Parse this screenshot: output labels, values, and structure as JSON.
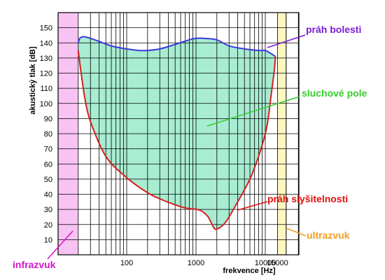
{
  "chart_data": {
    "type": "area",
    "xlabel": "frekvence [Hz]",
    "ylabel": "akustický tlak [dB]",
    "x_scale": "log",
    "xlim": [
      10,
      20000
    ],
    "ylim": [
      0,
      160
    ],
    "grid": true,
    "x_ticks": [
      {
        "value": 100,
        "label": "100"
      },
      {
        "value": 1000,
        "label": "1000"
      },
      {
        "value": 10000,
        "label": "10000"
      },
      {
        "value": 15000,
        "label": "15000"
      }
    ],
    "y_ticks": [
      10,
      20,
      30,
      40,
      50,
      60,
      70,
      80,
      90,
      100,
      110,
      120,
      130,
      140,
      150
    ],
    "bands": [
      {
        "label": "infrazvuk",
        "x_range": [
          10,
          20
        ],
        "color": "#f7c3f2"
      },
      {
        "label": "ultrazvuk",
        "x_range": [
          15000,
          20000
        ],
        "color": "#fbf7c0"
      }
    ],
    "series": [
      {
        "name": "práh bolesti",
        "color": "#3b3bdc",
        "x": [
          20,
          21,
          23,
          25,
          30,
          40,
          60,
          100,
          150,
          200,
          300,
          500,
          800,
          1000,
          1300,
          2000,
          3000,
          5000,
          8000,
          10000,
          12000,
          14000
        ],
        "y": [
          140,
          143,
          144,
          144,
          143,
          141,
          138,
          136,
          135,
          135,
          136,
          139,
          142,
          143,
          143,
          142,
          138,
          136,
          135,
          135,
          133,
          131
        ]
      },
      {
        "name": "práh slyšitelnosti",
        "color": "#d42020",
        "x": [
          14000,
          13500,
          12500,
          11000,
          10000,
          8000,
          6000,
          4000,
          3000,
          2500,
          2000,
          1800,
          1500,
          1200,
          1000,
          700,
          500,
          300,
          200,
          100,
          50,
          30,
          25,
          22,
          20
        ],
        "y": [
          131,
          122,
          110,
          90,
          80,
          65,
          50,
          35,
          25,
          20,
          17,
          18,
          25,
          29,
          30,
          31,
          33,
          37,
          41,
          51,
          65,
          88,
          103,
          120,
          135
        ]
      }
    ],
    "region": {
      "label": "sluchové pole",
      "fill": "#a8ecd2"
    },
    "annotations": [
      {
        "text": "práh bolesti",
        "color": "#7a1bd8"
      },
      {
        "text": "sluchové pole",
        "color": "#36cc2f"
      },
      {
        "text": "práh slyšitelnosti",
        "color": "#e01010"
      },
      {
        "text": "ultrazvuk",
        "color": "#f59a1a"
      },
      {
        "text": "infrazvuk",
        "color": "#d414c8"
      }
    ]
  }
}
